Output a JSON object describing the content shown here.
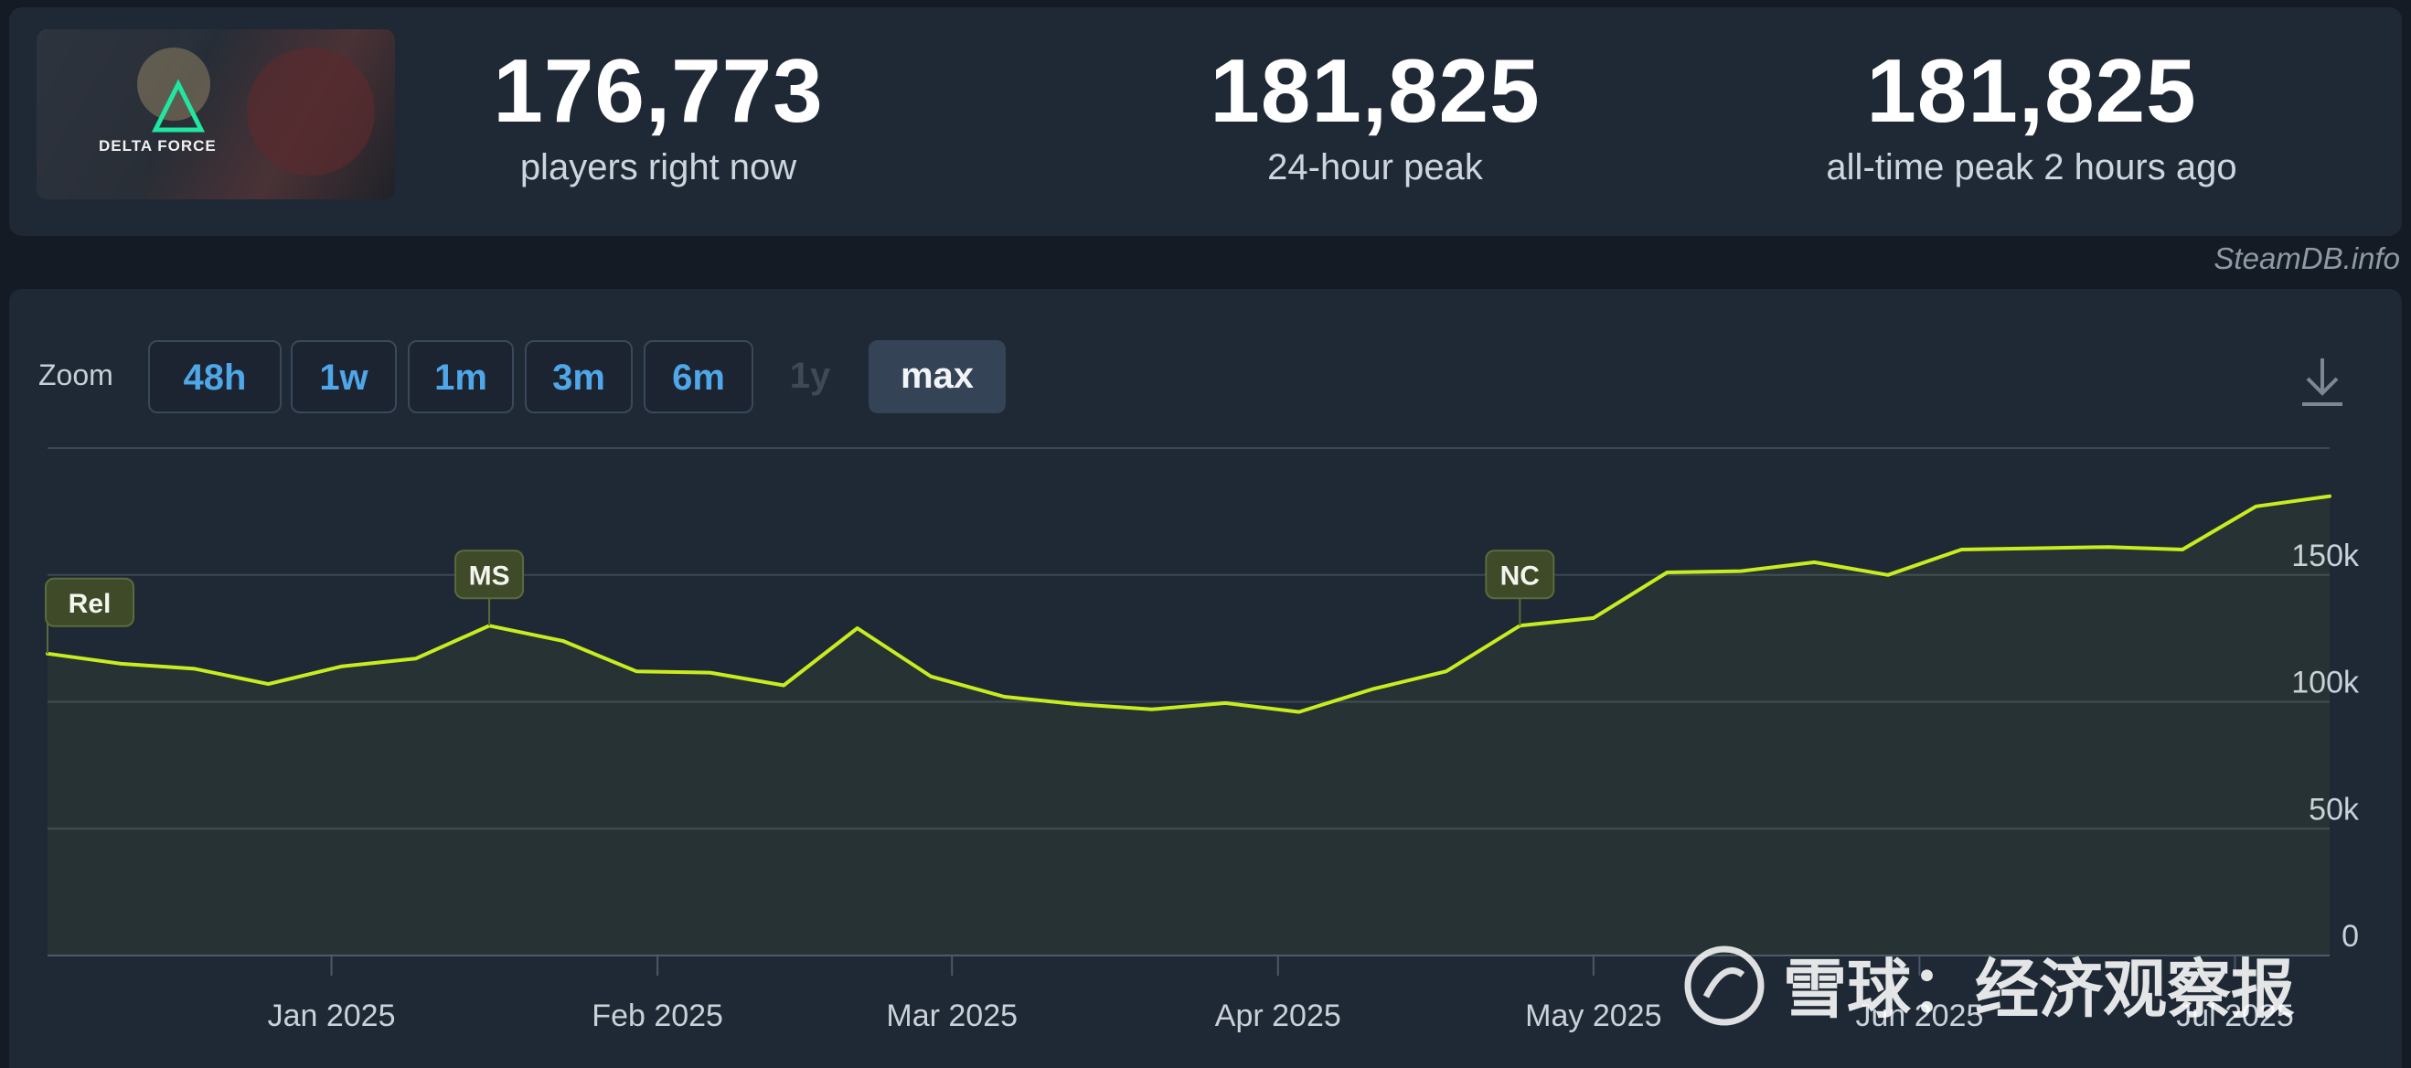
{
  "stats": {
    "game_name": "DELTA FORCE",
    "current": {
      "value": "176,773",
      "label": "players right now"
    },
    "peak24": {
      "value": "181,825",
      "label": "24-hour peak"
    },
    "alltime": {
      "value": "181,825",
      "label": "all-time peak 2 hours ago"
    }
  },
  "source": "SteamDB.info",
  "zoom": {
    "label": "Zoom",
    "buttons": [
      {
        "label": "48h",
        "state": "enabled"
      },
      {
        "label": "1w",
        "state": "enabled"
      },
      {
        "label": "1m",
        "state": "enabled"
      },
      {
        "label": "3m",
        "state": "enabled"
      },
      {
        "label": "6m",
        "state": "enabled"
      },
      {
        "label": "1y",
        "state": "disabled"
      },
      {
        "label": "max",
        "state": "active"
      }
    ]
  },
  "watermark": "雪球：经济观察报",
  "colors": {
    "line": "#c8ec1f",
    "marker_bg": "#3e4a28",
    "grid": "#3a4755",
    "axis_text": "#c9d1d9",
    "accent": "#4fa6e8"
  },
  "chart_data": {
    "type": "line",
    "series": [
      {
        "values": [
          {
            "date": "2024-12-05",
            "y": 119000
          },
          {
            "date": "2024-12-12",
            "y": 115000
          },
          {
            "date": "2024-12-19",
            "y": 113000
          },
          {
            "date": "2024-12-26",
            "y": 107000
          },
          {
            "date": "2025-01-02",
            "y": 114000
          },
          {
            "date": "2025-01-09",
            "y": 117000
          },
          {
            "date": "2025-01-16",
            "y": 130000
          },
          {
            "date": "2025-01-23",
            "y": 124000
          },
          {
            "date": "2025-01-30",
            "y": 112000
          },
          {
            "date": "2025-02-06",
            "y": 111500
          },
          {
            "date": "2025-02-13",
            "y": 106500
          },
          {
            "date": "2025-02-20",
            "y": 129000
          },
          {
            "date": "2025-02-27",
            "y": 110000
          },
          {
            "date": "2025-03-06",
            "y": 102000
          },
          {
            "date": "2025-03-13",
            "y": 99000
          },
          {
            "date": "2025-03-20",
            "y": 97000
          },
          {
            "date": "2025-03-27",
            "y": 99500
          },
          {
            "date": "2025-04-03",
            "y": 96000
          },
          {
            "date": "2025-04-10",
            "y": 105000
          },
          {
            "date": "2025-04-17",
            "y": 112000
          },
          {
            "date": "2025-04-24",
            "y": 130000
          },
          {
            "date": "2025-05-01",
            "y": 133000
          },
          {
            "date": "2025-05-08",
            "y": 151000
          },
          {
            "date": "2025-05-15",
            "y": 151500
          },
          {
            "date": "2025-05-22",
            "y": 155000
          },
          {
            "date": "2025-05-29",
            "y": 150000
          },
          {
            "date": "2025-06-05",
            "y": 160000
          },
          {
            "date": "2025-06-12",
            "y": 160500
          },
          {
            "date": "2025-06-19",
            "y": 161000
          },
          {
            "date": "2025-06-26",
            "y": 160000
          },
          {
            "date": "2025-07-03",
            "y": 177000
          },
          {
            "date": "2025-07-10",
            "y": 181000
          }
        ]
      }
    ],
    "x_range": [
      "2024-12-05",
      "2025-07-10"
    ],
    "y_range": [
      0,
      200000
    ],
    "x_ticks": [
      {
        "date": "2025-01-01",
        "label": "Jan 2025"
      },
      {
        "date": "2025-02-01",
        "label": "Feb 2025"
      },
      {
        "date": "2025-03-01",
        "label": "Mar 2025"
      },
      {
        "date": "2025-04-01",
        "label": "Apr 2025"
      },
      {
        "date": "2025-05-01",
        "label": "May 2025"
      },
      {
        "date": "2025-06-01",
        "label": "Jun 2025"
      },
      {
        "date": "2025-07-01",
        "label": "Jul 2025"
      }
    ],
    "y_ticks": [
      {
        "value": 0,
        "label": "0"
      },
      {
        "value": 50000,
        "label": "50k"
      },
      {
        "value": 100000,
        "label": "100k"
      },
      {
        "value": 150000,
        "label": "150k"
      }
    ],
    "annotations": [
      {
        "date": "2024-12-05",
        "label": "Rel"
      },
      {
        "date": "2025-01-16",
        "label": "MS"
      },
      {
        "date": "2025-04-24",
        "label": "NC"
      }
    ],
    "grid": true,
    "area_fill": true,
    "legend": "none"
  }
}
